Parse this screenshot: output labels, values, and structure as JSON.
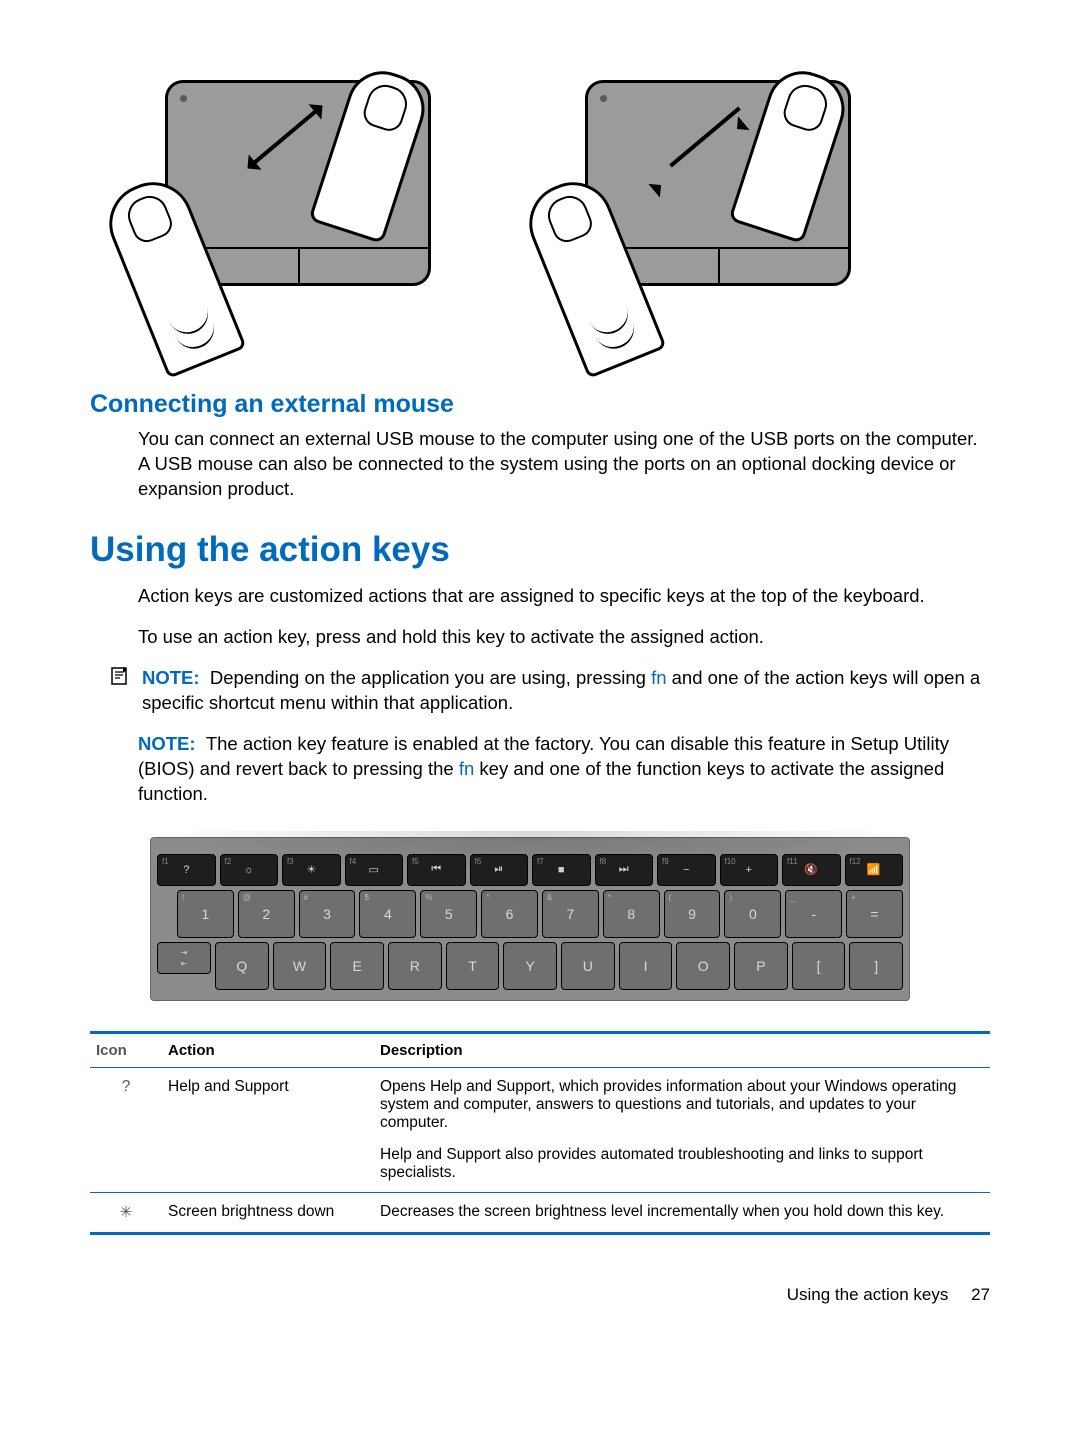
{
  "colors": {
    "heading_blue": "#006bbd",
    "body_text": "#000000",
    "key_dark": "#1e1e1e",
    "key_gray": "#6f6f6f",
    "kbd_bg": "#8b8b8b",
    "touchpad_bg": "#9b9b9b",
    "table_border": "#006bbd"
  },
  "typography": {
    "body_fontsize_pt": 14,
    "h2_fontsize_pt": 19,
    "h1_fontsize_pt": 26,
    "table_header_fontsize_pt": 11,
    "table_cell_fontsize_pt": 12,
    "font_family": "Arial"
  },
  "illustrations": {
    "left": "pinch-zoom-out",
    "right": "pinch-zoom-in"
  },
  "section1": {
    "title": "Connecting an external mouse",
    "body": "You can connect an external USB mouse to the computer using one of the USB ports on the computer. A USB mouse can also be connected to the system using the ports on an optional docking device or expansion product."
  },
  "section2": {
    "title": "Using the action keys",
    "p1": "Action keys are customized actions that are assigned to specific keys at the top of the keyboard.",
    "p2": "To use an action key, press and hold this key to activate the assigned action.",
    "note1_label": "NOTE:",
    "note1_a": "Depending on the application you are using, pressing ",
    "note1_fn": "fn",
    "note1_b": " and one of the action keys will open a specific shortcut menu within that application.",
    "note2_label": "NOTE:",
    "note2_a": "The action key feature is enabled at the factory. You can disable this feature in Setup Utility (BIOS) and revert back to pressing the ",
    "note2_fn": "fn",
    "note2_b": " key and one of the function keys to activate the assigned function."
  },
  "keyboard": {
    "fn_row": [
      {
        "sup": "f1",
        "glyph": "?"
      },
      {
        "sup": "f2",
        "glyph": "☼"
      },
      {
        "sup": "f3",
        "glyph": "☀"
      },
      {
        "sup": "f4",
        "glyph": "▭"
      },
      {
        "sup": "f5",
        "glyph": "⏮"
      },
      {
        "sup": "f6",
        "glyph": "⏯"
      },
      {
        "sup": "f7",
        "glyph": "■"
      },
      {
        "sup": "f8",
        "glyph": "⏭"
      },
      {
        "sup": "f9",
        "glyph": "−"
      },
      {
        "sup": "f10",
        "glyph": "+"
      },
      {
        "sup": "f11",
        "glyph": "🔇"
      },
      {
        "sup": "f12",
        "glyph": "📶"
      }
    ],
    "num_row": [
      {
        "sup": "!",
        "main": "1"
      },
      {
        "sup": "@",
        "main": "2"
      },
      {
        "sup": "#",
        "main": "3"
      },
      {
        "sup": "$",
        "main": "4"
      },
      {
        "sup": "%",
        "main": "5"
      },
      {
        "sup": "^",
        "main": "6"
      },
      {
        "sup": "&",
        "main": "7"
      },
      {
        "sup": "*",
        "main": "8"
      },
      {
        "sup": "(",
        "main": "9"
      },
      {
        "sup": ")",
        "main": "0"
      },
      {
        "sup": "_",
        "main": "-"
      },
      {
        "sup": "+",
        "main": "="
      }
    ],
    "qwerty": [
      "Q",
      "W",
      "E",
      "R",
      "T",
      "Y",
      "U",
      "I",
      "O",
      "P",
      "[",
      "]"
    ],
    "tab_top": "⇥",
    "tab_bot": "⇤"
  },
  "table": {
    "headers": {
      "icon": "Icon",
      "action": "Action",
      "desc": "Description"
    },
    "rows": [
      {
        "icon": "?",
        "icon_name": "help-icon",
        "action": "Help and Support",
        "desc1": "Opens Help and Support, which provides information about your Windows operating system and computer, answers to questions and tutorials, and updates to your computer.",
        "desc2": "Help and Support also provides automated troubleshooting and links to support specialists."
      },
      {
        "icon": "✳",
        "icon_name": "brightness-down-icon",
        "action": "Screen brightness down",
        "desc1": "Decreases the screen brightness level incrementally when you hold down this key.",
        "desc2": ""
      }
    ]
  },
  "footer": {
    "text": "Using the action keys",
    "page": "27"
  }
}
